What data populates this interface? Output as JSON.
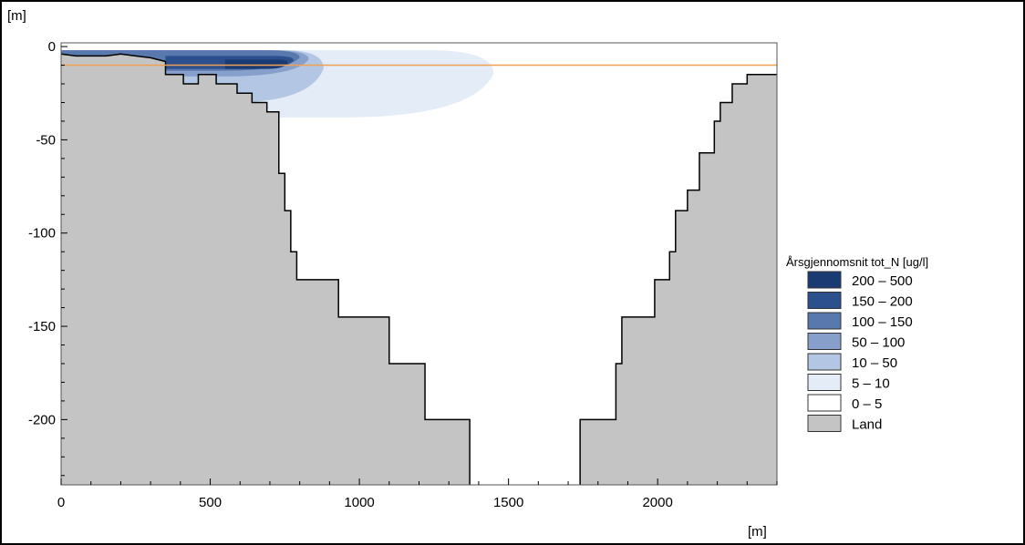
{
  "chart_data": {
    "type": "area",
    "title": "",
    "xlabel": "[m]",
    "ylabel": "[m]",
    "xlim": [
      0,
      2400
    ],
    "ylim": [
      -235,
      2
    ],
    "xticks": [
      0,
      500,
      1000,
      1500,
      2000
    ],
    "yticks": [
      0,
      -50,
      -100,
      -150,
      -200
    ],
    "grid": false,
    "reference_line": {
      "y": -10,
      "color": "#f0a050"
    },
    "land_color": "#c4c4c4",
    "land_left": [
      [
        0,
        -4
      ],
      [
        50,
        -5
      ],
      [
        100,
        -5
      ],
      [
        150,
        -5
      ],
      [
        200,
        -4
      ],
      [
        250,
        -5
      ],
      [
        300,
        -6
      ],
      [
        350,
        -8
      ],
      [
        350,
        -15
      ],
      [
        410,
        -15
      ],
      [
        410,
        -20
      ],
      [
        460,
        -20
      ],
      [
        460,
        -15
      ],
      [
        520,
        -15
      ],
      [
        520,
        -20
      ],
      [
        590,
        -20
      ],
      [
        590,
        -25
      ],
      [
        640,
        -25
      ],
      [
        640,
        -30
      ],
      [
        690,
        -30
      ],
      [
        690,
        -35
      ],
      [
        730,
        -35
      ],
      [
        730,
        -68
      ],
      [
        750,
        -68
      ],
      [
        750,
        -88
      ],
      [
        770,
        -88
      ],
      [
        770,
        -110
      ],
      [
        790,
        -110
      ],
      [
        790,
        -125
      ],
      [
        930,
        -125
      ],
      [
        930,
        -145
      ],
      [
        1100,
        -145
      ],
      [
        1100,
        -170
      ],
      [
        1220,
        -170
      ],
      [
        1220,
        -200
      ],
      [
        1370,
        -200
      ],
      [
        1370,
        -235
      ]
    ],
    "land_right": [
      [
        1740,
        -235
      ],
      [
        1740,
        -200
      ],
      [
        1860,
        -200
      ],
      [
        1860,
        -170
      ],
      [
        1880,
        -170
      ],
      [
        1880,
        -145
      ],
      [
        1990,
        -145
      ],
      [
        1990,
        -125
      ],
      [
        2040,
        -125
      ],
      [
        2040,
        -110
      ],
      [
        2060,
        -110
      ],
      [
        2060,
        -88
      ],
      [
        2100,
        -88
      ],
      [
        2100,
        -77
      ],
      [
        2140,
        -77
      ],
      [
        2140,
        -57
      ],
      [
        2190,
        -57
      ],
      [
        2190,
        -40
      ],
      [
        2210,
        -40
      ],
      [
        2210,
        -30
      ],
      [
        2250,
        -30
      ],
      [
        2250,
        -20
      ],
      [
        2300,
        -20
      ],
      [
        2300,
        -15
      ],
      [
        2340,
        -15
      ],
      [
        2400,
        -15
      ]
    ],
    "concentration_bins": [
      {
        "label": "200 – 500",
        "color": "#1a3a73"
      },
      {
        "label": "150 – 200",
        "color": "#2c4f8d"
      },
      {
        "label": "100 – 150",
        "color": "#5878ae"
      },
      {
        "label": "50 – 100",
        "color": "#86a0cb"
      },
      {
        "label": "10 – 50",
        "color": "#b3c6e3"
      },
      {
        "label": "5 – 10",
        "color": "#e3ecf7"
      },
      {
        "label": "0 – 5",
        "color": "#ffffff"
      },
      {
        "label": "Land",
        "color": "#c4c4c4"
      }
    ],
    "plume": [
      {
        "bin": "5 – 10",
        "x_range": [
          0,
          1450
        ],
        "depth_range": [
          -2,
          -38
        ]
      },
      {
        "bin": "10 – 50",
        "x_range": [
          0,
          880
        ],
        "depth_range": [
          -2,
          -30
        ]
      },
      {
        "bin": "50 – 100",
        "x_range": [
          0,
          830
        ],
        "depth_range": [
          -2,
          -16
        ]
      },
      {
        "bin": "100 – 150",
        "x_range": [
          0,
          800
        ],
        "depth_range": [
          -2,
          -13
        ]
      },
      {
        "bin": "150 – 200",
        "x_range": [
          350,
          780
        ],
        "depth_range": [
          -5,
          -12
        ]
      },
      {
        "bin": "200 – 500",
        "x_range": [
          550,
          760
        ],
        "depth_range": [
          -7,
          -12
        ]
      }
    ],
    "legend": {
      "title": "Årsgjennomsnit tot_N [ug/l]",
      "position": "right"
    }
  }
}
